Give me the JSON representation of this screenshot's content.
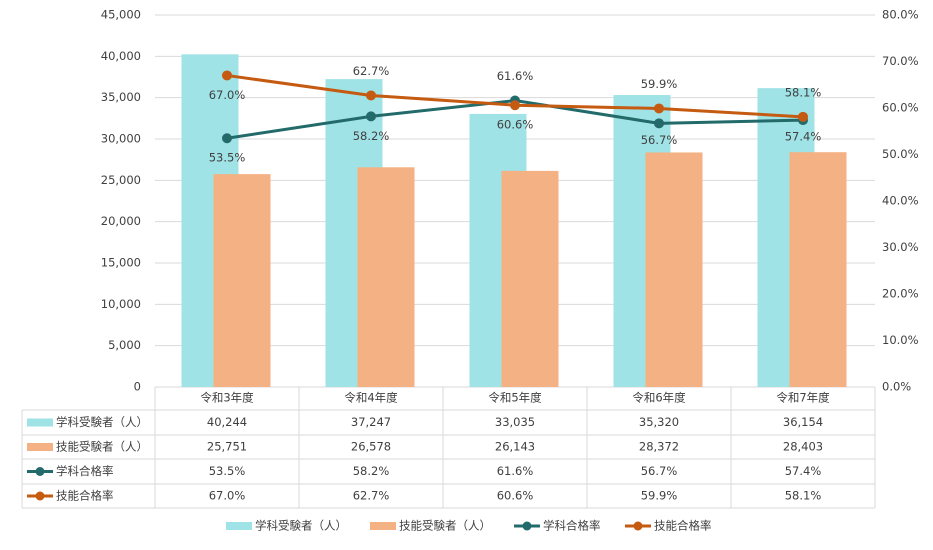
{
  "chart_data": {
    "type": "combo",
    "categories": [
      "令和3年度",
      "令和4年度",
      "令和5年度",
      "令和6年度",
      "令和7年度"
    ],
    "series": [
      {
        "name": "学科受験者（人）",
        "type": "bar",
        "color": "#a0e3e6",
        "values": [
          40244,
          37247,
          33035,
          35320,
          36154
        ],
        "value_labels": [
          "40,244",
          "37,247",
          "33,035",
          "35,320",
          "36,154"
        ]
      },
      {
        "name": "技能受験者（人）",
        "type": "bar",
        "color": "#f4b183",
        "values": [
          25751,
          26578,
          26143,
          28372,
          28403
        ],
        "value_labels": [
          "25,751",
          "26,578",
          "26,143",
          "28,372",
          "28,403"
        ]
      },
      {
        "name": "学科合格率",
        "type": "line",
        "axis": "y2",
        "color": "#236a6a",
        "values": [
          53.5,
          58.2,
          61.6,
          56.7,
          57.4
        ],
        "value_labels": [
          "53.5%",
          "58.2%",
          "61.6%",
          "56.7%",
          "57.4%"
        ]
      },
      {
        "name": "技能合格率",
        "type": "line",
        "axis": "y2",
        "color": "#c55a11",
        "values": [
          67.0,
          62.7,
          60.6,
          59.9,
          58.1
        ],
        "value_labels": [
          "67.0%",
          "62.7%",
          "60.6%",
          "59.9%",
          "58.1%"
        ]
      }
    ],
    "ylim": [
      0,
      45000
    ],
    "yticks": [
      0,
      {
        "value": 5000,
        "label": "5,000"
      },
      {
        "value": 10000,
        "label": "10,000"
      },
      {
        "value": 15000,
        "label": "15,000"
      },
      {
        "value": 20000,
        "label": "20,000"
      },
      {
        "value": 25000,
        "label": "25,000"
      },
      {
        "value": 30000,
        "label": "30,000"
      },
      {
        "value": 35000,
        "label": "35,000"
      },
      {
        "value": 40000,
        "label": "40,000"
      },
      {
        "value": 45000,
        "label": "45,000"
      }
    ],
    "y2lim": [
      0,
      80
    ],
    "y2ticks": [
      {
        "value": 0,
        "label": "0.0%"
      },
      {
        "value": 10,
        "label": "10.0%"
      },
      {
        "value": 20,
        "label": "20.0%"
      },
      {
        "value": 30,
        "label": "30.0%"
      },
      {
        "value": 40,
        "label": "40.0%"
      },
      {
        "value": 50,
        "label": "50.0%"
      },
      {
        "value": 60,
        "label": "60.0%"
      },
      {
        "value": 70,
        "label": "70.0%"
      },
      {
        "value": 80,
        "label": "80.0%"
      }
    ],
    "grid": true,
    "legend": "bottom"
  }
}
